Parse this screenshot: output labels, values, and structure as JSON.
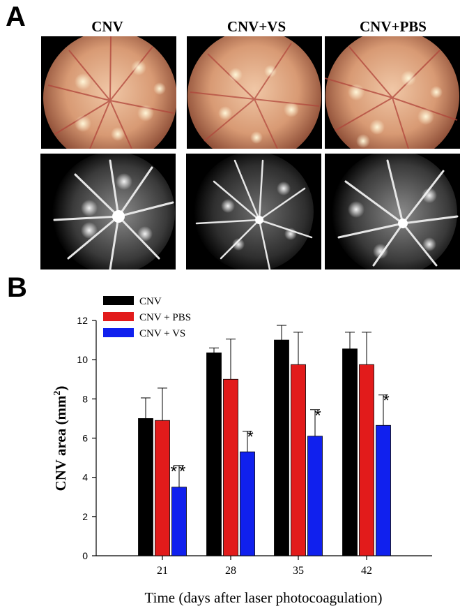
{
  "figure": {
    "panel_a_letter": "A",
    "panel_b_letter": "B",
    "columns": [
      "CNV",
      "CNV+VS",
      "CNV+PBS"
    ]
  },
  "colors": {
    "CNV": "#000000",
    "CNV + PBS": "#e21b1b",
    "CNV + VS": "#1020ee"
  },
  "chart_data": {
    "type": "bar",
    "categories": [
      "21",
      "28",
      "35",
      "42"
    ],
    "series": [
      {
        "name": "CNV",
        "values": [
          7.0,
          10.35,
          11.0,
          10.55
        ],
        "errors": [
          1.05,
          0.25,
          0.75,
          0.85
        ]
      },
      {
        "name": "CNV + PBS",
        "values": [
          6.9,
          9.0,
          9.75,
          9.75
        ],
        "errors": [
          1.65,
          2.05,
          1.65,
          1.65
        ]
      },
      {
        "name": "CNV + VS",
        "values": [
          3.5,
          5.3,
          6.1,
          6.65
        ],
        "errors": [
          1.1,
          1.05,
          1.35,
          1.55
        ]
      }
    ],
    "annotations": [
      {
        "category": "21",
        "series": "CNV + VS",
        "text": "**"
      },
      {
        "category": "28",
        "series": "CNV + VS",
        "text": "*"
      },
      {
        "category": "35",
        "series": "CNV + VS",
        "text": "*"
      },
      {
        "category": "42",
        "series": "CNV + VS",
        "text": "*"
      }
    ],
    "xlabel": "Time (days after laser photocoagulation)",
    "ylabel": "CNV area (mm2)",
    "ylabel_main": "CNV area (mm",
    "ylabel_sup": "2",
    "ylabel_end": ")",
    "ylim": [
      0,
      12
    ],
    "yticks": [
      "0",
      "2",
      "4",
      "6",
      "8",
      "10",
      "12"
    ],
    "grid": false,
    "legend_position": "top-left"
  }
}
